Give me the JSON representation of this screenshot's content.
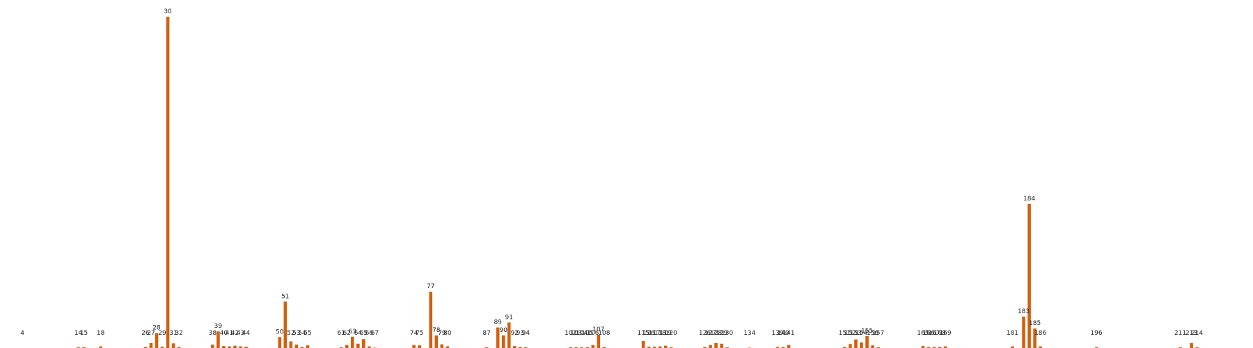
{
  "chart_data": {
    "type": "bar",
    "title": "",
    "xlabel": "",
    "ylabel": "",
    "ylim": [
      0,
      100
    ],
    "xlim": [
      0,
      224
    ],
    "grid": false,
    "legend": "none",
    "color": "#d2600f",
    "bars": [
      {
        "x": 4,
        "label": "4",
        "value": 0.0
      },
      {
        "x": 14,
        "label": "14",
        "value": 0.2
      },
      {
        "x": 15,
        "label": "15",
        "value": 0.2
      },
      {
        "x": 18,
        "label": "18",
        "value": 0.5
      },
      {
        "x": 26,
        "label": "26",
        "value": 0.3
      },
      {
        "x": 27,
        "label": "27",
        "value": 1.5
      },
      {
        "x": 28,
        "label": "28",
        "value": 4.5
      },
      {
        "x": 29,
        "label": "29",
        "value": 0.4
      },
      {
        "x": 30,
        "label": "30",
        "value": 100.0
      },
      {
        "x": 31,
        "label": "31",
        "value": 1.4
      },
      {
        "x": 32,
        "label": "32",
        "value": 0.3
      },
      {
        "x": 38,
        "label": "38",
        "value": 1.0
      },
      {
        "x": 39,
        "label": "39",
        "value": 5.0
      },
      {
        "x": 40,
        "label": "40",
        "value": 0.6
      },
      {
        "x": 41,
        "label": "41",
        "value": 0.5
      },
      {
        "x": 42,
        "label": "42",
        "value": 0.7
      },
      {
        "x": 43,
        "label": "43",
        "value": 0.5
      },
      {
        "x": 44,
        "label": "44",
        "value": 0.4
      },
      {
        "x": 50,
        "label": "50",
        "value": 3.3
      },
      {
        "x": 51,
        "label": "51",
        "value": 14.0
      },
      {
        "x": 52,
        "label": "52",
        "value": 2.0
      },
      {
        "x": 53,
        "label": "53",
        "value": 1.0
      },
      {
        "x": 54,
        "label": "54",
        "value": 0.3
      },
      {
        "x": 55,
        "label": "55",
        "value": 0.8
      },
      {
        "x": 61,
        "label": "61",
        "value": 0.2
      },
      {
        "x": 62,
        "label": "62",
        "value": 0.9
      },
      {
        "x": 63,
        "label": "63",
        "value": 3.4
      },
      {
        "x": 64,
        "label": "64",
        "value": 1.3
      },
      {
        "x": 65,
        "label": "65",
        "value": 2.7
      },
      {
        "x": 66,
        "label": "66",
        "value": 0.5
      },
      {
        "x": 67,
        "label": "67",
        "value": 0.1
      },
      {
        "x": 74,
        "label": "74",
        "value": 0.9
      },
      {
        "x": 75,
        "label": "75",
        "value": 0.8
      },
      {
        "x": 77,
        "label": "77",
        "value": 17.0
      },
      {
        "x": 78,
        "label": "78",
        "value": 3.8
      },
      {
        "x": 79,
        "label": "79",
        "value": 1.1
      },
      {
        "x": 80,
        "label": "80",
        "value": 0.5
      },
      {
        "x": 87,
        "label": "87",
        "value": 0.2
      },
      {
        "x": 89,
        "label": "89",
        "value": 6.2
      },
      {
        "x": 90,
        "label": "90",
        "value": 3.8
      },
      {
        "x": 91,
        "label": "91",
        "value": 7.7
      },
      {
        "x": 92,
        "label": "92",
        "value": 0.6
      },
      {
        "x": 93,
        "label": "93",
        "value": 0.3
      },
      {
        "x": 94,
        "label": "94",
        "value": 0.2
      },
      {
        "x": 102,
        "label": "102",
        "value": 0.2
      },
      {
        "x": 103,
        "label": "103",
        "value": 0.2
      },
      {
        "x": 104,
        "label": "104",
        "value": 0.2
      },
      {
        "x": 105,
        "label": "105",
        "value": 0.2
      },
      {
        "x": 106,
        "label": "106",
        "value": 0.9
      },
      {
        "x": 107,
        "label": "107",
        "value": 4.0
      },
      {
        "x": 108,
        "label": "108",
        "value": 0.3
      },
      {
        "x": 115,
        "label": "115",
        "value": 2.1
      },
      {
        "x": 116,
        "label": "116",
        "value": 0.4
      },
      {
        "x": 117,
        "label": "117",
        "value": 0.4
      },
      {
        "x": 118,
        "label": "118",
        "value": 0.5
      },
      {
        "x": 119,
        "label": "119",
        "value": 0.7
      },
      {
        "x": 120,
        "label": "120",
        "value": 0.2
      },
      {
        "x": 126,
        "label": "126",
        "value": 0.3
      },
      {
        "x": 127,
        "label": "127",
        "value": 0.9
      },
      {
        "x": 128,
        "label": "128",
        "value": 1.5
      },
      {
        "x": 129,
        "label": "129",
        "value": 1.3
      },
      {
        "x": 130,
        "label": "130",
        "value": 0.2
      },
      {
        "x": 134,
        "label": "134",
        "value": 0.1
      },
      {
        "x": 139,
        "label": "139",
        "value": 0.3
      },
      {
        "x": 140,
        "label": "140",
        "value": 0.3
      },
      {
        "x": 141,
        "label": "141",
        "value": 0.9
      },
      {
        "x": 151,
        "label": "151",
        "value": 0.3
      },
      {
        "x": 152,
        "label": "152",
        "value": 1.2
      },
      {
        "x": 153,
        "label": "153",
        "value": 2.6
      },
      {
        "x": 154,
        "label": "154",
        "value": 1.7
      },
      {
        "x": 155,
        "label": "155",
        "value": 3.6
      },
      {
        "x": 156,
        "label": "156",
        "value": 0.8
      },
      {
        "x": 157,
        "label": "157",
        "value": 0.2
      },
      {
        "x": 165,
        "label": "165",
        "value": 0.6
      },
      {
        "x": 166,
        "label": "166",
        "value": 0.3
      },
      {
        "x": 167,
        "label": "167",
        "value": 0.3
      },
      {
        "x": 168,
        "label": "168",
        "value": 0.3
      },
      {
        "x": 169,
        "label": "169",
        "value": 0.5
      },
      {
        "x": 181,
        "label": "181",
        "value": 0.5
      },
      {
        "x": 183,
        "label": "183",
        "value": 9.5
      },
      {
        "x": 184,
        "label": "184",
        "value": 43.5
      },
      {
        "x": 185,
        "label": "185",
        "value": 5.9
      },
      {
        "x": 186,
        "label": "186",
        "value": 0.5
      },
      {
        "x": 196,
        "label": "196",
        "value": 0.2
      },
      {
        "x": 211,
        "label": "211",
        "value": 0.2
      },
      {
        "x": 213,
        "label": "213",
        "value": 1.5
      },
      {
        "x": 214,
        "label": "214",
        "value": 0.2
      }
    ]
  }
}
